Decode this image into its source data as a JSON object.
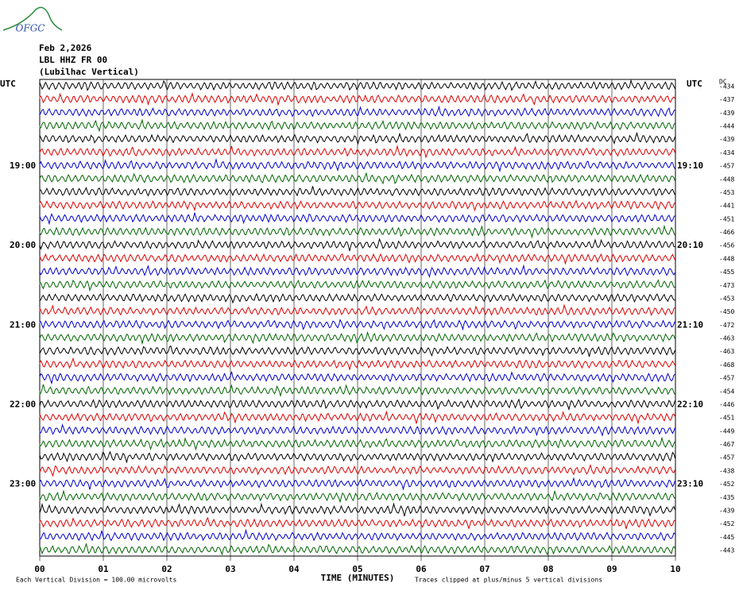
{
  "logo": "OFGC",
  "header": {
    "date": "Feb 2,2026",
    "station": "LBL HHZ FR 00",
    "location": "(Lubilhac Vertical)"
  },
  "left_labels": [
    "UTC",
    "19:00",
    "20:00",
    "21:00",
    "22:00",
    "23:00"
  ],
  "right_labels": [
    "UTC",
    "19:10",
    "20:10",
    "21:10",
    "22:10",
    "23:10"
  ],
  "dc_label": "DC",
  "dc_offsets": [
    "-434",
    "-437",
    "-439",
    "-444",
    "-439",
    "-434",
    "-457",
    "-448",
    "-453",
    "-441",
    "-451",
    "-466",
    "-456",
    "-448",
    "-455",
    "-473",
    "-453",
    "-450",
    "-472",
    "-463",
    "-463",
    "-468",
    "-457",
    "-454",
    "-446",
    "-451",
    "-449",
    "-467",
    "-457",
    "-438",
    "-452",
    "-435",
    "-439",
    "-452",
    "-445",
    "-443"
  ],
  "x_ticks": [
    "00",
    "01",
    "02",
    "03",
    "04",
    "05",
    "06",
    "07",
    "08",
    "09",
    "10"
  ],
  "x_axis_label": "TIME (MINUTES)",
  "footer": {
    "scale": "Each Vertical Division =  100.00 microvolts",
    "clip": "Traces clipped at plus/minus 5 vertical divisions"
  }
}
